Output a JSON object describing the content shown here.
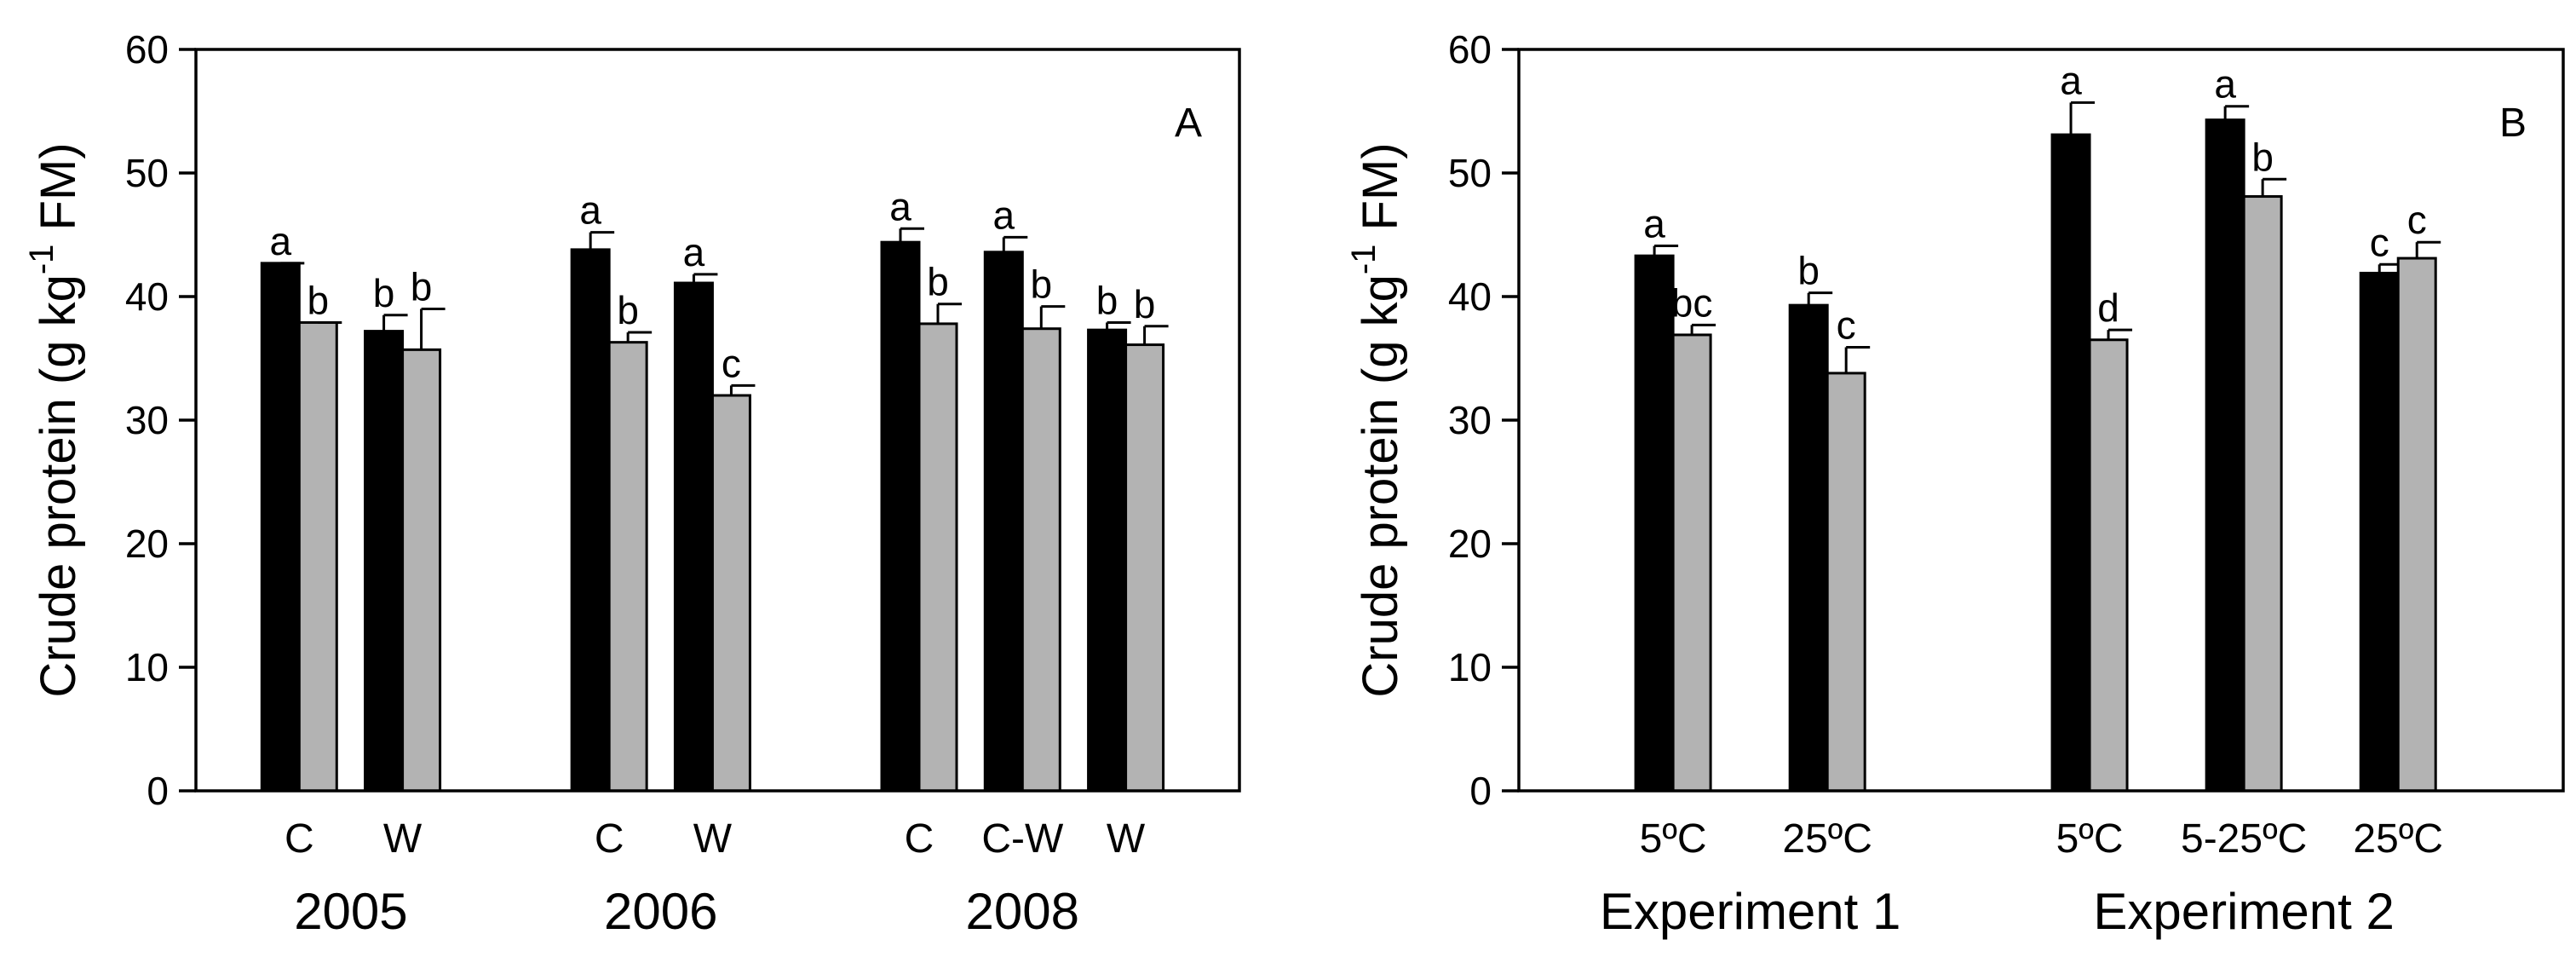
{
  "chart_data": [
    {
      "type": "bar",
      "panel_label": "A",
      "ylabel": {
        "main": "Crude protein (g kg",
        "sup": "-1",
        "tail": " FM)"
      },
      "ylim": [
        0,
        60
      ],
      "yticks": [
        0,
        10,
        20,
        30,
        40,
        50,
        60
      ],
      "series": [
        {
          "name": "dark",
          "color": "#000000"
        },
        {
          "name": "light",
          "color": "#b3b3b3"
        }
      ],
      "categories": [
        {
          "label": "C",
          "x": 1.0,
          "values": [
            42.7,
            37.9
          ],
          "errors": [
            0.0,
            0.0
          ],
          "letters": [
            "a",
            "b"
          ]
        },
        {
          "label": "W",
          "x": 2.0,
          "values": [
            37.2,
            35.7
          ],
          "errors": [
            1.3,
            3.3
          ],
          "letters": [
            "b",
            "b"
          ]
        },
        {
          "label": "C",
          "x": 4.0,
          "values": [
            43.8,
            36.3
          ],
          "errors": [
            1.4,
            0.8
          ],
          "letters": [
            "a",
            "b"
          ]
        },
        {
          "label": "W",
          "x": 5.0,
          "values": [
            41.1,
            32.0
          ],
          "errors": [
            0.7,
            0.8
          ],
          "letters": [
            "a",
            "c"
          ]
        },
        {
          "label": "C",
          "x": 7.0,
          "values": [
            44.4,
            37.8
          ],
          "errors": [
            1.1,
            1.6
          ],
          "letters": [
            "a",
            "b"
          ]
        },
        {
          "label": "C-W",
          "x": 8.0,
          "values": [
            43.6,
            37.4
          ],
          "errors": [
            1.2,
            1.8
          ],
          "letters": [
            "a",
            "b"
          ]
        },
        {
          "label": "W",
          "x": 9.0,
          "values": [
            37.3,
            36.1
          ],
          "errors": [
            0.6,
            1.5
          ],
          "letters": [
            "b",
            "b"
          ]
        }
      ],
      "groups": [
        {
          "label": "2005",
          "x": 1.5
        },
        {
          "label": "2006",
          "x": 4.5
        },
        {
          "label": "2008",
          "x": 8.0
        }
      ]
    },
    {
      "type": "bar",
      "panel_label": "B",
      "ylabel": {
        "main": "Crude protein (g kg",
        "sup": "-1",
        "tail": " FM)"
      },
      "ylim": [
        0,
        60
      ],
      "yticks": [
        0,
        10,
        20,
        30,
        40,
        50,
        60
      ],
      "series": [
        {
          "name": "dark",
          "color": "#000000"
        },
        {
          "name": "light",
          "color": "#b3b3b3"
        }
      ],
      "categories": [
        {
          "label": "5ºC",
          "x": 1.0,
          "values": [
            43.3,
            36.9
          ],
          "errors": [
            0.8,
            0.8
          ],
          "letters": [
            "a",
            "bc"
          ]
        },
        {
          "label": "25ºC",
          "x": 2.0,
          "values": [
            39.3,
            33.8
          ],
          "errors": [
            1.0,
            2.1
          ],
          "letters": [
            "b",
            "c"
          ]
        },
        {
          "label": "5ºC",
          "x": 3.7,
          "values": [
            53.1,
            36.5
          ],
          "errors": [
            2.6,
            0.8
          ],
          "letters": [
            "a",
            "d"
          ]
        },
        {
          "label": "5-25ºC",
          "x": 4.7,
          "values": [
            54.3,
            48.1
          ],
          "errors": [
            1.1,
            1.4
          ],
          "letters": [
            "a",
            "b"
          ]
        },
        {
          "label": "25ºC",
          "x": 5.7,
          "values": [
            41.9,
            43.1
          ],
          "errors": [
            0.7,
            1.3
          ],
          "letters": [
            "c",
            "c"
          ]
        }
      ],
      "groups": [
        {
          "label": "Experiment 1",
          "x": 1.5
        },
        {
          "label": "Experiment 2",
          "x": 4.7
        }
      ]
    }
  ]
}
